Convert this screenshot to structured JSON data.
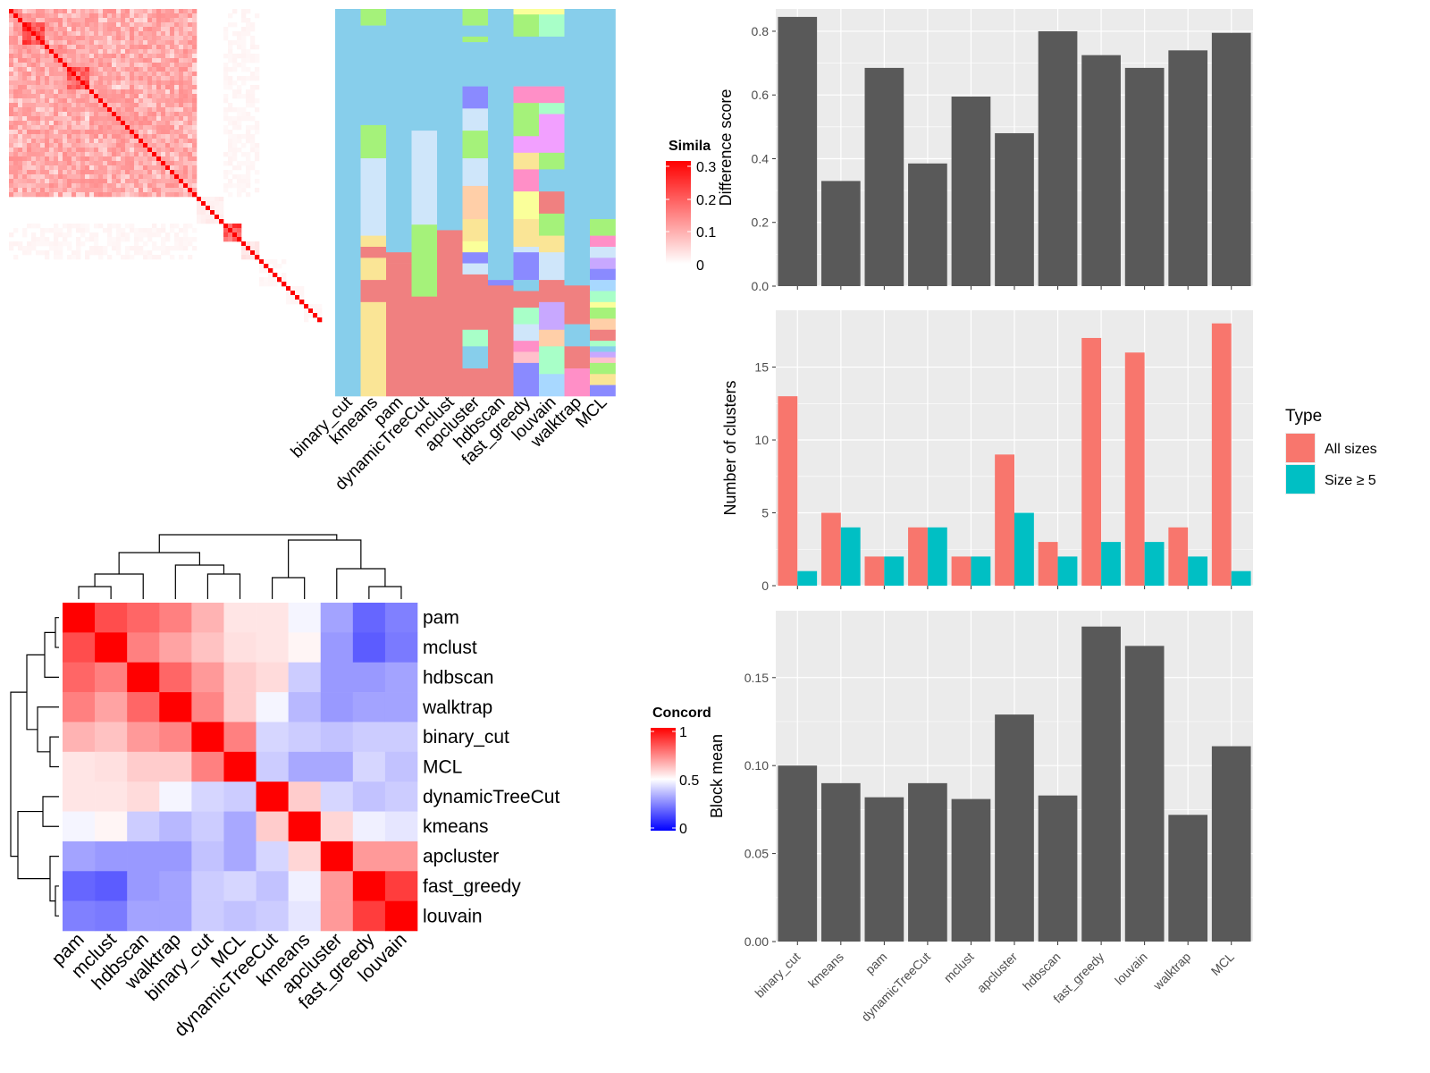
{
  "methods": [
    "binary_cut",
    "kmeans",
    "pam",
    "dynamicTreeCut",
    "mclust",
    "apcluster",
    "hdbscan",
    "fast_greedy",
    "louvain",
    "walktrap",
    "MCL"
  ],
  "colors": {
    "heat_low": "#ffffff",
    "heat_high": "#ff0000",
    "conc_low": "#0000ff",
    "conc_mid": "#ffffff",
    "conc_high": "#ff0000",
    "panel_bg": "#ebebeb",
    "grid": "#ffffff",
    "bar": "#595959",
    "all_sizes": "#f8766d",
    "size5": "#00bfc4",
    "cluster_palette": [
      "#87ceeb",
      "#f08080",
      "#fae596",
      "#cfe6fa",
      "#a5f27a",
      "#8a8aff",
      "#ff8fc7",
      "#f2a0ff",
      "#a8ffc8",
      "#ffcfa8",
      "#faff9a",
      "#c8a8ff",
      "#a8d8ff",
      "#ffc0cb"
    ]
  },
  "similarity_heatmap": {
    "legend_title": "Simila",
    "legend_ticks": [
      "0.3",
      "0.2",
      "0.1",
      "0"
    ],
    "blocks": [
      [
        0,
        3,
        0.12
      ],
      [
        3,
        8,
        0.2
      ],
      [
        8,
        13,
        0.12
      ],
      [
        13,
        18,
        0.18
      ],
      [
        18,
        28,
        0.1
      ],
      [
        28,
        32,
        0.1
      ],
      [
        32,
        35,
        0.05
      ],
      [
        35,
        38,
        0.05
      ],
      [
        38,
        42,
        0.06
      ],
      [
        42,
        48,
        0.02
      ],
      [
        48,
        52,
        0.2
      ],
      [
        52,
        56,
        0.03
      ],
      [
        56,
        62,
        0.01
      ],
      [
        62,
        66,
        0.01
      ],
      [
        66,
        70,
        0.01
      ]
    ],
    "between": [
      [
        0,
        42,
        0,
        42,
        0.09
      ],
      [
        0,
        42,
        48,
        56,
        0.01
      ]
    ]
  },
  "cluster_matrix": {
    "x_labels": [
      "binary_cut",
      "kmeans",
      "pam",
      "dynamicTreeCut",
      "mclust",
      "apcluster",
      "hdbscan",
      "fast_greedy",
      "louvain",
      "walktrap",
      "MCL"
    ],
    "columns": [
      [
        [
          0,
          70,
          0
        ]
      ],
      [
        [
          0,
          3,
          4
        ],
        [
          3,
          21,
          0
        ],
        [
          21,
          27,
          4
        ],
        [
          27,
          41,
          3
        ],
        [
          41,
          43,
          2
        ],
        [
          43,
          45,
          1
        ],
        [
          45,
          49,
          2
        ],
        [
          49,
          53,
          1
        ],
        [
          53,
          70,
          2
        ]
      ],
      [
        [
          0,
          44,
          0
        ],
        [
          44,
          46,
          1
        ],
        [
          46,
          70,
          1
        ]
      ],
      [
        [
          0,
          22,
          0
        ],
        [
          22,
          39,
          3
        ],
        [
          39,
          52,
          4
        ],
        [
          52,
          70,
          1
        ]
      ],
      [
        [
          0,
          40,
          0
        ],
        [
          40,
          42,
          1
        ],
        [
          42,
          70,
          1
        ]
      ],
      [
        [
          0,
          3,
          4
        ],
        [
          3,
          5,
          0
        ],
        [
          5,
          6,
          4
        ],
        [
          6,
          14,
          0
        ],
        [
          14,
          18,
          5
        ],
        [
          18,
          22,
          3
        ],
        [
          22,
          27,
          4
        ],
        [
          27,
          32,
          3
        ],
        [
          32,
          38,
          9
        ],
        [
          38,
          42,
          2
        ],
        [
          42,
          44,
          10
        ],
        [
          44,
          46,
          5
        ],
        [
          46,
          48,
          3
        ],
        [
          48,
          58,
          1
        ],
        [
          58,
          61,
          8
        ],
        [
          61,
          65,
          0
        ],
        [
          65,
          70,
          1
        ]
      ],
      [
        [
          0,
          49,
          0
        ],
        [
          49,
          50,
          5
        ],
        [
          50,
          70,
          1
        ]
      ],
      [
        [
          0,
          1,
          10
        ],
        [
          1,
          5,
          4
        ],
        [
          5,
          14,
          0
        ],
        [
          14,
          17,
          6
        ],
        [
          17,
          20,
          4
        ],
        [
          20,
          23,
          4
        ],
        [
          23,
          26,
          7
        ],
        [
          26,
          29,
          2
        ],
        [
          29,
          33,
          6
        ],
        [
          33,
          38,
          10
        ],
        [
          38,
          43,
          2
        ],
        [
          43,
          44,
          3
        ],
        [
          44,
          49,
          5
        ],
        [
          49,
          51,
          0
        ],
        [
          51,
          54,
          1
        ],
        [
          54,
          57,
          8
        ],
        [
          57,
          60,
          3
        ],
        [
          60,
          62,
          6
        ],
        [
          62,
          64,
          13
        ],
        [
          64,
          66,
          5
        ],
        [
          66,
          70,
          5
        ]
      ],
      [
        [
          0,
          1,
          10
        ],
        [
          1,
          5,
          8
        ],
        [
          5,
          14,
          0
        ],
        [
          14,
          17,
          6
        ],
        [
          17,
          19,
          8
        ],
        [
          19,
          26,
          7
        ],
        [
          26,
          29,
          4
        ],
        [
          29,
          33,
          0
        ],
        [
          33,
          37,
          1
        ],
        [
          37,
          41,
          4
        ],
        [
          41,
          44,
          2
        ],
        [
          44,
          49,
          3
        ],
        [
          49,
          53,
          1
        ],
        [
          53,
          58,
          11
        ],
        [
          58,
          61,
          9
        ],
        [
          61,
          66,
          8
        ],
        [
          66,
          70,
          12
        ]
      ],
      [
        [
          0,
          50,
          0
        ],
        [
          50,
          57,
          1
        ],
        [
          57,
          61,
          0
        ],
        [
          61,
          65,
          1
        ],
        [
          65,
          70,
          6
        ]
      ],
      [
        [
          0,
          38,
          0
        ],
        [
          38,
          41,
          4
        ],
        [
          41,
          43,
          6
        ],
        [
          43,
          45,
          3
        ],
        [
          45,
          47,
          11
        ],
        [
          47,
          49,
          5
        ],
        [
          49,
          51,
          12
        ],
        [
          51,
          53,
          8
        ],
        [
          53,
          54,
          10
        ],
        [
          54,
          56,
          4
        ],
        [
          56,
          58,
          9
        ],
        [
          58,
          60,
          1
        ],
        [
          60,
          61,
          8
        ],
        [
          61,
          62,
          0
        ],
        [
          62,
          63,
          11
        ],
        [
          63,
          64,
          13
        ],
        [
          64,
          66,
          4
        ],
        [
          66,
          68,
          2
        ],
        [
          68,
          70,
          5
        ]
      ]
    ]
  },
  "concordance_heatmap": {
    "order": [
      "pam",
      "mclust",
      "hdbscan",
      "walktrap",
      "binary_cut",
      "MCL",
      "dynamicTreeCut",
      "kmeans",
      "apcluster",
      "fast_greedy",
      "louvain"
    ],
    "legend_title": "Concord",
    "legend_ticks": [
      "1",
      "0.5",
      "0"
    ],
    "matrix": [
      [
        1,
        0.85,
        0.8,
        0.75,
        0.65,
        0.55,
        0.55,
        0.48,
        0.32,
        0.2,
        0.25
      ],
      [
        0.85,
        1,
        0.75,
        0.68,
        0.62,
        0.56,
        0.55,
        0.52,
        0.3,
        0.18,
        0.24
      ],
      [
        0.8,
        0.75,
        1,
        0.8,
        0.7,
        0.6,
        0.57,
        0.4,
        0.3,
        0.3,
        0.32
      ],
      [
        0.75,
        0.68,
        0.8,
        1,
        0.74,
        0.6,
        0.48,
        0.36,
        0.3,
        0.32,
        0.32
      ],
      [
        0.65,
        0.62,
        0.7,
        0.74,
        1,
        0.75,
        0.42,
        0.4,
        0.38,
        0.4,
        0.4
      ],
      [
        0.55,
        0.56,
        0.6,
        0.6,
        0.75,
        1,
        0.4,
        0.33,
        0.33,
        0.42,
        0.38
      ],
      [
        0.55,
        0.55,
        0.57,
        0.48,
        0.42,
        0.4,
        1,
        0.6,
        0.42,
        0.38,
        0.4
      ],
      [
        0.48,
        0.52,
        0.4,
        0.36,
        0.4,
        0.33,
        0.6,
        1,
        0.58,
        0.47,
        0.45
      ],
      [
        0.32,
        0.3,
        0.3,
        0.3,
        0.38,
        0.33,
        0.42,
        0.58,
        1,
        0.7,
        0.7
      ],
      [
        0.2,
        0.18,
        0.3,
        0.32,
        0.4,
        0.42,
        0.38,
        0.47,
        0.7,
        1,
        0.88
      ],
      [
        0.25,
        0.24,
        0.32,
        0.32,
        0.4,
        0.38,
        0.4,
        0.45,
        0.7,
        0.88,
        1
      ]
    ]
  },
  "chart_data": [
    {
      "type": "bar",
      "categories": [
        "binary_cut",
        "kmeans",
        "pam",
        "dynamicTreeCut",
        "mclust",
        "apcluster",
        "hdbscan",
        "fast_greedy",
        "louvain",
        "walktrap",
        "MCL"
      ],
      "values": [
        0.845,
        0.33,
        0.685,
        0.385,
        0.595,
        0.48,
        0.8,
        0.725,
        0.685,
        0.74,
        0.795
      ],
      "ylabel": "Difference score",
      "ylim": [
        0,
        0.87
      ],
      "yticks": [
        0.0,
        0.2,
        0.4,
        0.6,
        0.8
      ],
      "ytick_labels": [
        "0.0",
        "0.2",
        "0.4",
        "0.6",
        "0.8"
      ],
      "grid": true
    },
    {
      "type": "bar",
      "categories": [
        "binary_cut",
        "kmeans",
        "pam",
        "dynamicTreeCut",
        "mclust",
        "apcluster",
        "hdbscan",
        "fast_greedy",
        "louvain",
        "walktrap",
        "MCL"
      ],
      "series": [
        {
          "name": "All sizes",
          "values": [
            13,
            5,
            2,
            4,
            2,
            9,
            3,
            17,
            16,
            4,
            18
          ]
        },
        {
          "name": "Size ≥ 5",
          "values": [
            1,
            4,
            2,
            4,
            2,
            5,
            2,
            3,
            3,
            2,
            1
          ]
        }
      ],
      "ylabel": "Number of clusters",
      "ylim": [
        0,
        18.9
      ],
      "yticks": [
        0,
        5,
        10,
        15
      ],
      "ytick_labels": [
        "0",
        "5",
        "10",
        "15"
      ],
      "legend_title": "Type",
      "legend": "right",
      "grid": true
    },
    {
      "type": "bar",
      "categories": [
        "binary_cut",
        "kmeans",
        "pam",
        "dynamicTreeCut",
        "mclust",
        "apcluster",
        "hdbscan",
        "fast_greedy",
        "louvain",
        "walktrap",
        "MCL"
      ],
      "values": [
        0.1,
        0.09,
        0.082,
        0.09,
        0.081,
        0.129,
        0.083,
        0.179,
        0.168,
        0.072,
        0.111
      ],
      "ylabel": "Block mean",
      "ylim": [
        0,
        0.188
      ],
      "yticks": [
        0.0,
        0.05,
        0.1,
        0.15
      ],
      "ytick_labels": [
        "0.00",
        "0.05",
        "0.10",
        "0.15"
      ],
      "grid": true
    }
  ]
}
